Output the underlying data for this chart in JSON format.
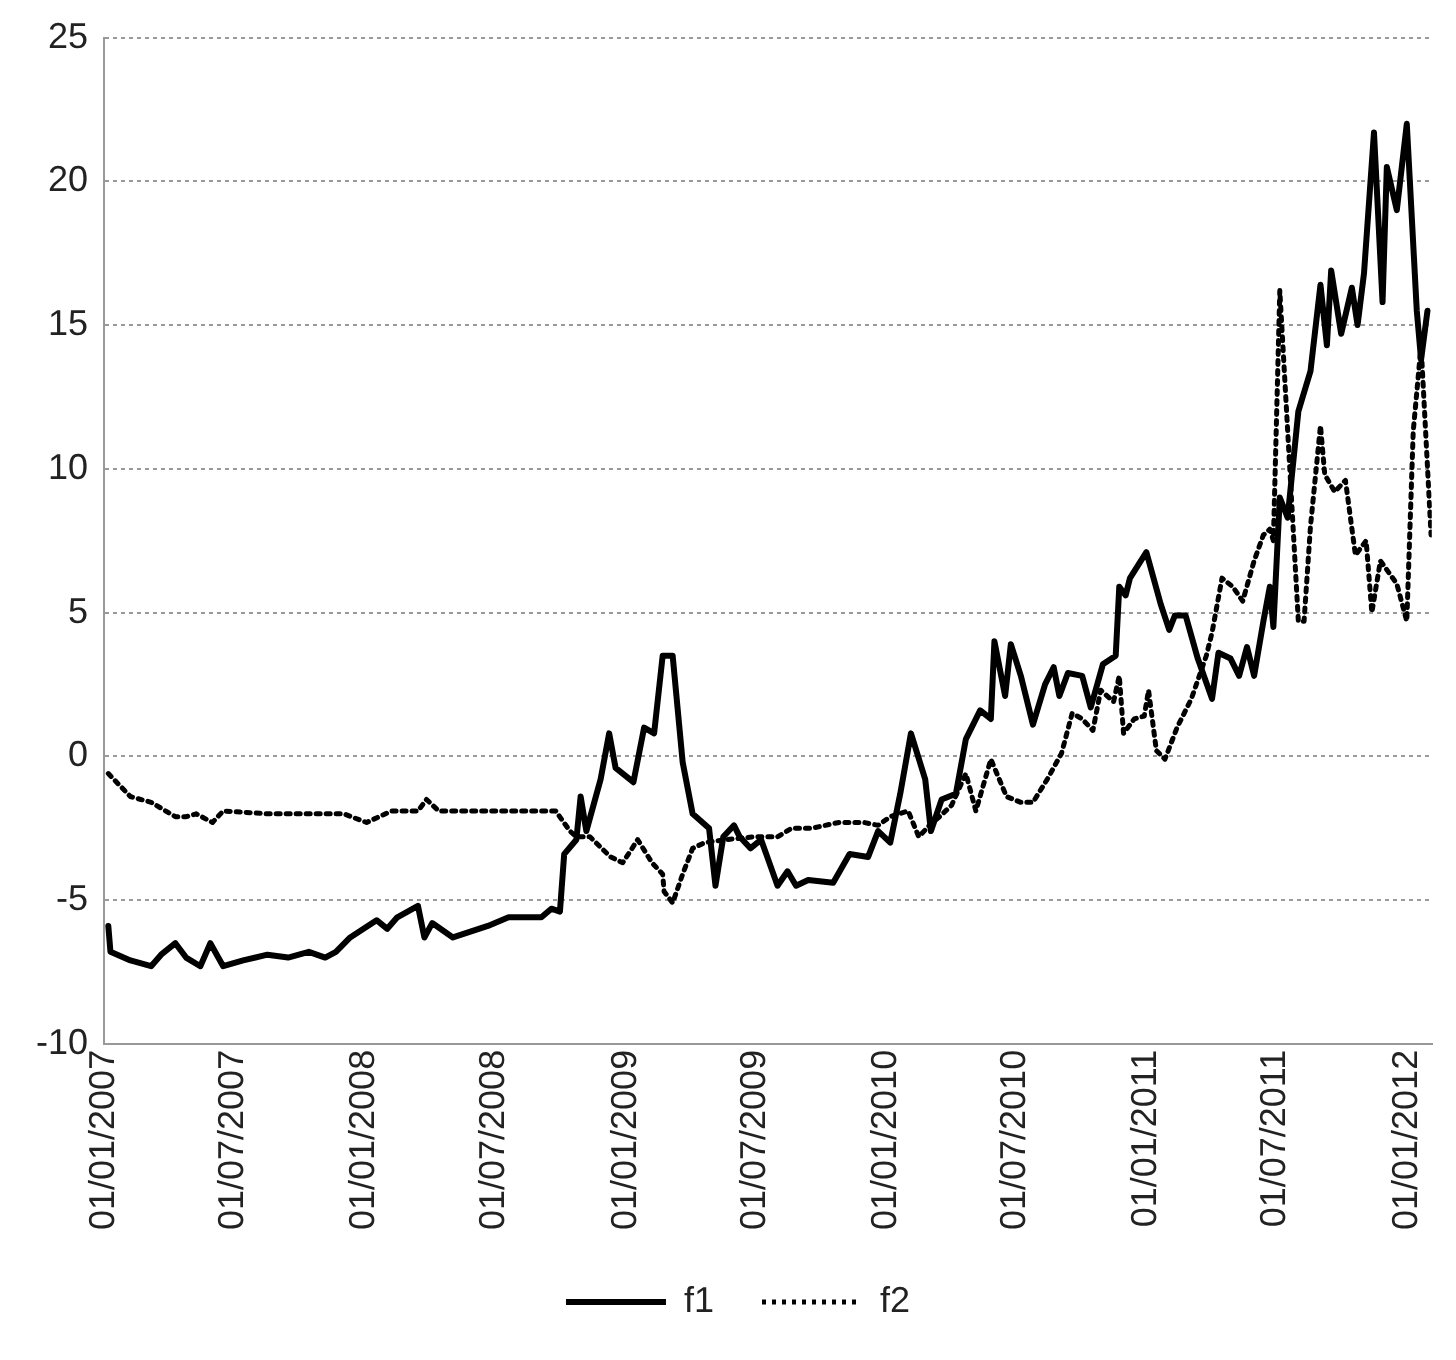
{
  "chart_data": {
    "type": "line",
    "xlim": [
      "2007-01-01",
      "2012-02-05"
    ],
    "xticks": [
      {
        "value": "2007-01-01",
        "label": "01/01/2007"
      },
      {
        "value": "2007-07-01",
        "label": "01/07/2007"
      },
      {
        "value": "2008-01-01",
        "label": "01/01/2008"
      },
      {
        "value": "2008-07-01",
        "label": "01/07/2008"
      },
      {
        "value": "2009-01-01",
        "label": "01/01/2009"
      },
      {
        "value": "2009-07-01",
        "label": "01/07/2009"
      },
      {
        "value": "2010-01-01",
        "label": "01/01/2010"
      },
      {
        "value": "2010-07-01",
        "label": "01/07/2010"
      },
      {
        "value": "2011-01-01",
        "label": "01/01/2011"
      },
      {
        "value": "2011-07-01",
        "label": "01/07/2011"
      },
      {
        "value": "2012-01-01",
        "label": "01/01/2012"
      }
    ],
    "ylim": [
      -10,
      25
    ],
    "yticks": [
      -10,
      -5,
      0,
      5,
      10,
      15,
      20,
      25
    ],
    "grid": "y",
    "legend": "bottom",
    "series": [
      {
        "name": "f1",
        "color": "#000000",
        "line_style": "solid",
        "x": [
          "2007-01-07",
          "2007-01-10",
          "2007-02-07",
          "2007-03-08",
          "2007-03-22",
          "2007-04-11",
          "2007-04-26",
          "2007-05-16",
          "2007-05-30",
          "2007-06-17",
          "2007-07-15",
          "2007-08-18",
          "2007-09-16",
          "2007-10-15",
          "2007-11-07",
          "2007-11-22",
          "2007-12-12",
          "2008-01-18",
          "2008-02-02",
          "2008-02-16",
          "2008-03-16",
          "2008-03-25",
          "2008-04-05",
          "2008-05-04",
          "2008-06-22",
          "2008-07-21",
          "2008-09-05",
          "2008-09-19",
          "2008-10-01",
          "2008-10-07",
          "2008-10-24",
          "2008-10-30",
          "2008-11-07",
          "2008-11-27",
          "2008-12-09",
          "2008-12-18",
          "2009-01-12",
          "2009-01-27",
          "2009-02-10",
          "2009-02-22",
          "2009-03-08",
          "2009-03-22",
          "2009-04-05",
          "2009-04-28",
          "2009-05-07",
          "2009-05-18",
          "2009-06-02",
          "2009-06-10",
          "2009-06-25",
          "2009-07-10",
          "2009-08-02",
          "2009-08-16",
          "2009-08-28",
          "2009-09-14",
          "2009-10-19",
          "2009-11-11",
          "2009-12-07",
          "2009-12-21",
          "2010-01-07",
          "2010-01-21",
          "2010-02-05",
          "2010-02-25",
          "2010-03-05",
          "2010-03-20",
          "2010-04-09",
          "2010-04-23",
          "2010-05-13",
          "2010-05-28",
          "2010-06-02",
          "2010-06-17",
          "2010-06-25",
          "2010-07-09",
          "2010-07-26",
          "2010-08-12",
          "2010-08-24",
          "2010-09-01",
          "2010-09-13",
          "2010-10-03",
          "2010-10-15",
          "2010-11-01",
          "2010-11-19",
          "2010-11-24",
          "2010-12-03",
          "2010-12-09",
          "2011-01-01",
          "2011-01-21",
          "2011-02-02",
          "2011-02-10",
          "2011-02-25",
          "2011-03-14",
          "2011-04-03",
          "2011-04-12",
          "2011-04-29",
          "2011-05-11",
          "2011-05-22",
          "2011-06-01",
          "2011-06-14",
          "2011-06-23",
          "2011-06-28",
          "2011-07-07",
          "2011-07-18",
          "2011-08-02",
          "2011-08-19",
          "2011-09-02",
          "2011-09-11",
          "2011-09-17",
          "2011-10-01",
          "2011-10-16",
          "2011-10-24",
          "2011-11-02",
          "2011-11-16",
          "2011-11-28",
          "2011-12-04",
          "2011-12-18",
          "2012-01-01",
          "2012-01-15",
          "2012-01-21",
          "2012-01-30"
        ],
        "values": [
          -5.9,
          -6.8,
          -7.1,
          -7.3,
          -6.9,
          -6.5,
          -7.0,
          -7.3,
          -6.5,
          -7.3,
          -7.1,
          -6.9,
          -7.0,
          -6.8,
          -7.0,
          -6.8,
          -6.3,
          -5.7,
          -6.0,
          -5.6,
          -5.2,
          -6.3,
          -5.8,
          -6.3,
          -5.9,
          -5.6,
          -5.6,
          -5.3,
          -5.4,
          -3.4,
          -2.9,
          -1.4,
          -2.6,
          -0.8,
          0.8,
          -0.4,
          -0.9,
          1.0,
          0.8,
          3.5,
          3.5,
          -0.2,
          -2.0,
          -2.5,
          -4.5,
          -2.8,
          -2.4,
          -2.8,
          -3.2,
          -2.9,
          -4.5,
          -4.0,
          -4.5,
          -4.3,
          -4.4,
          -3.4,
          -3.5,
          -2.6,
          -3.0,
          -1.3,
          0.8,
          -0.8,
          -2.6,
          -1.5,
          -1.3,
          0.6,
          1.6,
          1.3,
          4.0,
          2.1,
          3.9,
          2.8,
          1.1,
          2.5,
          3.1,
          2.1,
          2.9,
          2.8,
          1.7,
          3.2,
          3.5,
          5.9,
          5.6,
          6.2,
          7.1,
          5.3,
          4.4,
          4.9,
          4.9,
          3.4,
          2.0,
          3.6,
          3.4,
          2.8,
          3.8,
          2.8,
          4.7,
          5.9,
          4.5,
          9.0,
          8.3,
          12.0,
          13.4,
          16.4,
          14.3,
          16.9,
          14.7,
          16.3,
          15.0,
          16.8,
          21.7,
          15.8,
          20.5,
          19.0,
          22.0,
          15.5,
          13.8,
          15.5
        ]
      },
      {
        "name": "f2",
        "color": "#000000",
        "line_style": "dotted",
        "x": [
          "2007-01-07",
          "2007-02-07",
          "2007-03-08",
          "2007-04-11",
          "2007-04-26",
          "2007-05-10",
          "2007-06-02",
          "2007-06-17",
          "2007-08-18",
          "2007-10-15",
          "2007-12-03",
          "2008-01-04",
          "2008-02-08",
          "2008-03-16",
          "2008-03-28",
          "2008-04-14",
          "2008-07-01",
          "2008-09-25",
          "2008-10-15",
          "2008-10-24",
          "2008-11-12",
          "2008-12-11",
          "2008-12-28",
          "2009-01-18",
          "2009-02-07",
          "2009-02-22",
          "2009-02-24",
          "2009-03-08",
          "2009-03-22",
          "2009-04-05",
          "2009-04-22",
          "2009-05-21",
          "2009-07-01",
          "2009-08-02",
          "2009-08-22",
          "2009-09-19",
          "2009-10-27",
          "2009-12-01",
          "2009-12-21",
          "2010-01-07",
          "2010-02-01",
          "2010-02-16",
          "2010-03-03",
          "2010-03-17",
          "2010-04-03",
          "2010-04-23",
          "2010-05-07",
          "2010-05-28",
          "2010-06-19",
          "2010-07-09",
          "2010-07-26",
          "2010-08-15",
          "2010-09-04",
          "2010-09-19",
          "2010-10-03",
          "2010-10-18",
          "2010-10-29",
          "2010-11-16",
          "2010-11-24",
          "2010-11-30",
          "2010-12-15",
          "2010-12-29",
          "2011-01-04",
          "2011-01-15",
          "2011-01-27",
          "2011-02-13",
          "2011-03-05",
          "2011-03-26",
          "2011-04-03",
          "2011-04-17",
          "2011-05-02",
          "2011-05-16",
          "2011-06-01",
          "2011-06-14",
          "2011-06-23",
          "2011-06-28",
          "2011-07-07",
          "2011-08-02",
          "2011-08-10",
          "2011-08-19",
          "2011-09-02",
          "2011-09-08",
          "2011-09-22",
          "2011-10-07",
          "2011-10-21",
          "2011-11-05",
          "2011-11-13",
          "2011-11-25",
          "2011-12-18",
          "2012-01-01",
          "2012-01-10",
          "2012-01-21",
          "2012-02-04"
        ],
        "values": [
          -0.6,
          -1.4,
          -1.6,
          -2.1,
          -2.1,
          -2.0,
          -2.3,
          -1.9,
          -2.0,
          -2.0,
          -2.0,
          -2.3,
          -1.9,
          -1.9,
          -1.5,
          -1.9,
          -1.9,
          -1.9,
          -2.6,
          -2.8,
          -2.8,
          -3.5,
          -3.7,
          -2.9,
          -3.7,
          -4.1,
          -4.7,
          -5.1,
          -4.1,
          -3.2,
          -3.0,
          -2.9,
          -2.8,
          -2.8,
          -2.5,
          -2.5,
          -2.3,
          -2.3,
          -2.4,
          -2.1,
          -1.9,
          -2.8,
          -2.4,
          -2.1,
          -1.7,
          -0.6,
          -1.9,
          -0.1,
          -1.4,
          -1.6,
          -1.6,
          -0.8,
          0.1,
          1.5,
          1.3,
          0.9,
          2.3,
          1.9,
          2.8,
          0.8,
          1.3,
          1.4,
          2.3,
          0.2,
          -0.1,
          1.0,
          2.0,
          3.5,
          4.3,
          6.2,
          5.9,
          5.4,
          6.8,
          7.7,
          7.9,
          7.5,
          16.2,
          4.7,
          4.7,
          8.0,
          11.5,
          9.8,
          9.2,
          9.6,
          7.0,
          7.5,
          5.0,
          6.8,
          6.0,
          4.7,
          11.3,
          14.3,
          7.7
        ]
      }
    ]
  }
}
